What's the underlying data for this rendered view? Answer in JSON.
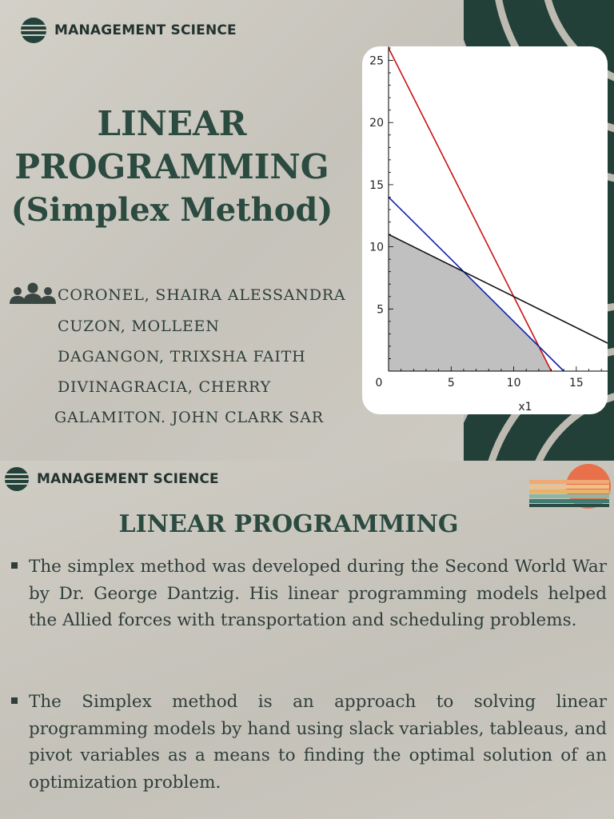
{
  "slide1": {
    "brand": "MANAGEMENT SCIENCE",
    "title_lines": [
      "LINEAR",
      "PROGRAMMING",
      "(Simplex Method)"
    ],
    "authors": [
      "CORONEL, SHAIRA ALESSANDRA",
      "CUZON, MOLLEEN",
      "DAGANGON, TRIXSHA FAITH",
      "DIVINAGRACIA, CHERRY",
      "GALAMITON. JOHN CLARK SAR"
    ],
    "people_icon": "group-people-icon"
  },
  "chart_data": {
    "type": "line",
    "xlabel": "x1",
    "ylabel": "",
    "xlim": [
      0,
      17.5
    ],
    "ylim": [
      0,
      26
    ],
    "x_ticks": [
      "0",
      "5",
      "10",
      "15"
    ],
    "y_ticks": [
      "5",
      "10",
      "15",
      "20",
      "25"
    ],
    "series": [
      {
        "color": "#cc1111",
        "points": [
          [
            0,
            26
          ],
          [
            13,
            0
          ]
        ]
      },
      {
        "color": "#1122aa",
        "points": [
          [
            0,
            14
          ],
          [
            14,
            0
          ]
        ]
      },
      {
        "color": "#111111",
        "points": [
          [
            0,
            11
          ],
          [
            17.5,
            2.25
          ]
        ]
      }
    ],
    "feasible_region": {
      "color": "#c0c0c0",
      "points": [
        [
          0,
          0
        ],
        [
          0,
          11
        ],
        [
          6,
          8
        ],
        [
          12,
          2
        ],
        [
          13,
          0
        ]
      ]
    }
  },
  "slide2": {
    "brand": "MANAGEMENT SCIENCE",
    "title": "LINEAR PROGRAMMING",
    "bullets": [
      "The simplex method was developed during the Second World War by Dr. George Dantzig. His linear programming models helped the Allied forces with transportation and scheduling problems.",
      "The Simplex method is an approach to solving linear programming models by hand using slack variables, tableaus, and pivot variables as a means to finding the optimal solution of an optimization problem."
    ],
    "sunset_icon": "sunset-logo-icon",
    "colors": {
      "dark_green": "#223f38",
      "sun": "#e8704a"
    }
  }
}
